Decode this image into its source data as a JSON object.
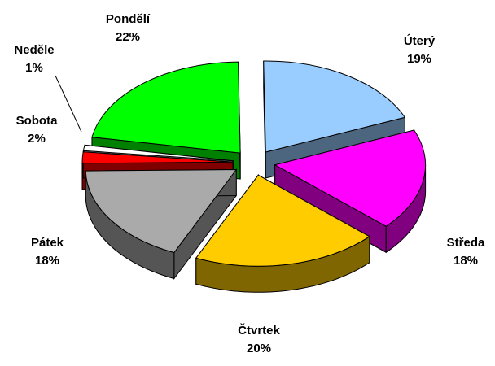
{
  "chart_data": {
    "type": "pie",
    "categories": [
      "Pondělí",
      "Úterý",
      "Středa",
      "Čtvrtek",
      "Pátek",
      "Sobota",
      "Neděle"
    ],
    "values": [
      22,
      19,
      18,
      20,
      18,
      2,
      1
    ],
    "value_labels": [
      "22%",
      "19%",
      "18%",
      "20%",
      "18%",
      "2%",
      "1%"
    ],
    "colors": [
      "#00ff00",
      "#99ccff",
      "#ff00ff",
      "#ffcc00",
      "#aaaaaa",
      "#ff0000",
      "#ffffff"
    ]
  }
}
